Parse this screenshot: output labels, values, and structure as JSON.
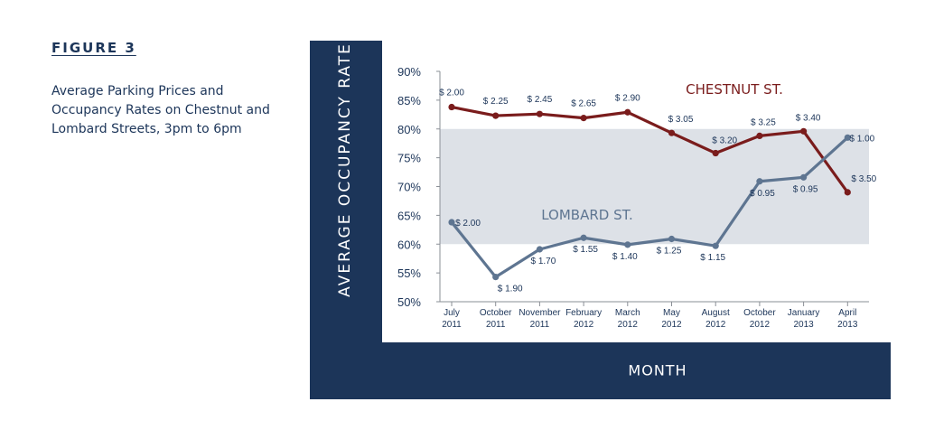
{
  "figure_label": "FIGURE 3",
  "caption_lines": [
    "Average Parking Prices and",
    "Occupancy Rates on Chestnut and",
    "Lombard Streets, 3pm to 6pm"
  ],
  "chart_data": {
    "type": "line",
    "title": "Average Parking Prices and Occupancy Rates on Chestnut and Lombard Streets, 3pm to 6pm",
    "xlabel": "MONTH",
    "ylabel": "AVERAGE OCCUPANCY RATE",
    "ylim": [
      50,
      90
    ],
    "y_ticks": [
      "50%",
      "55%",
      "60%",
      "65%",
      "70%",
      "75%",
      "80%",
      "85%",
      "90%"
    ],
    "target_band": [
      60,
      80
    ],
    "categories": [
      [
        "July",
        "2011"
      ],
      [
        "October",
        "2011"
      ],
      [
        "November",
        "2011"
      ],
      [
        "February",
        "2012"
      ],
      [
        "March",
        "2012"
      ],
      [
        "May",
        "2012"
      ],
      [
        "August",
        "2012"
      ],
      [
        "October",
        "2012"
      ],
      [
        "January",
        "2013"
      ],
      [
        "April",
        "2013"
      ]
    ],
    "series": [
      {
        "name": "CHESTNUT ST.",
        "color": "#7a1c1c",
        "values": [
          83.8,
          82.3,
          82.6,
          81.9,
          82.9,
          79.3,
          75.8,
          78.8,
          79.6,
          69.0
        ],
        "price_labels": [
          "$ 2.00",
          "$ 2.25",
          "$ 2.45",
          "$ 2.65",
          "$ 2.90",
          "$ 3.05",
          "$ 3.20",
          "$ 3.25",
          "$ 3.40",
          "$ 3.50"
        ]
      },
      {
        "name": "LOMBARD ST.",
        "color": "#5e7591",
        "values": [
          63.8,
          54.3,
          59.1,
          61.1,
          59.9,
          60.9,
          59.7,
          70.9,
          71.6,
          78.5
        ],
        "price_labels": [
          "$ 2.00",
          "$ 1.90",
          "$ 1.70",
          "$ 1.55",
          "$ 1.40",
          "$ 1.25",
          "$ 1.15",
          "$ 0.95",
          "$ 0.95",
          "$ 1.00"
        ]
      }
    ]
  }
}
